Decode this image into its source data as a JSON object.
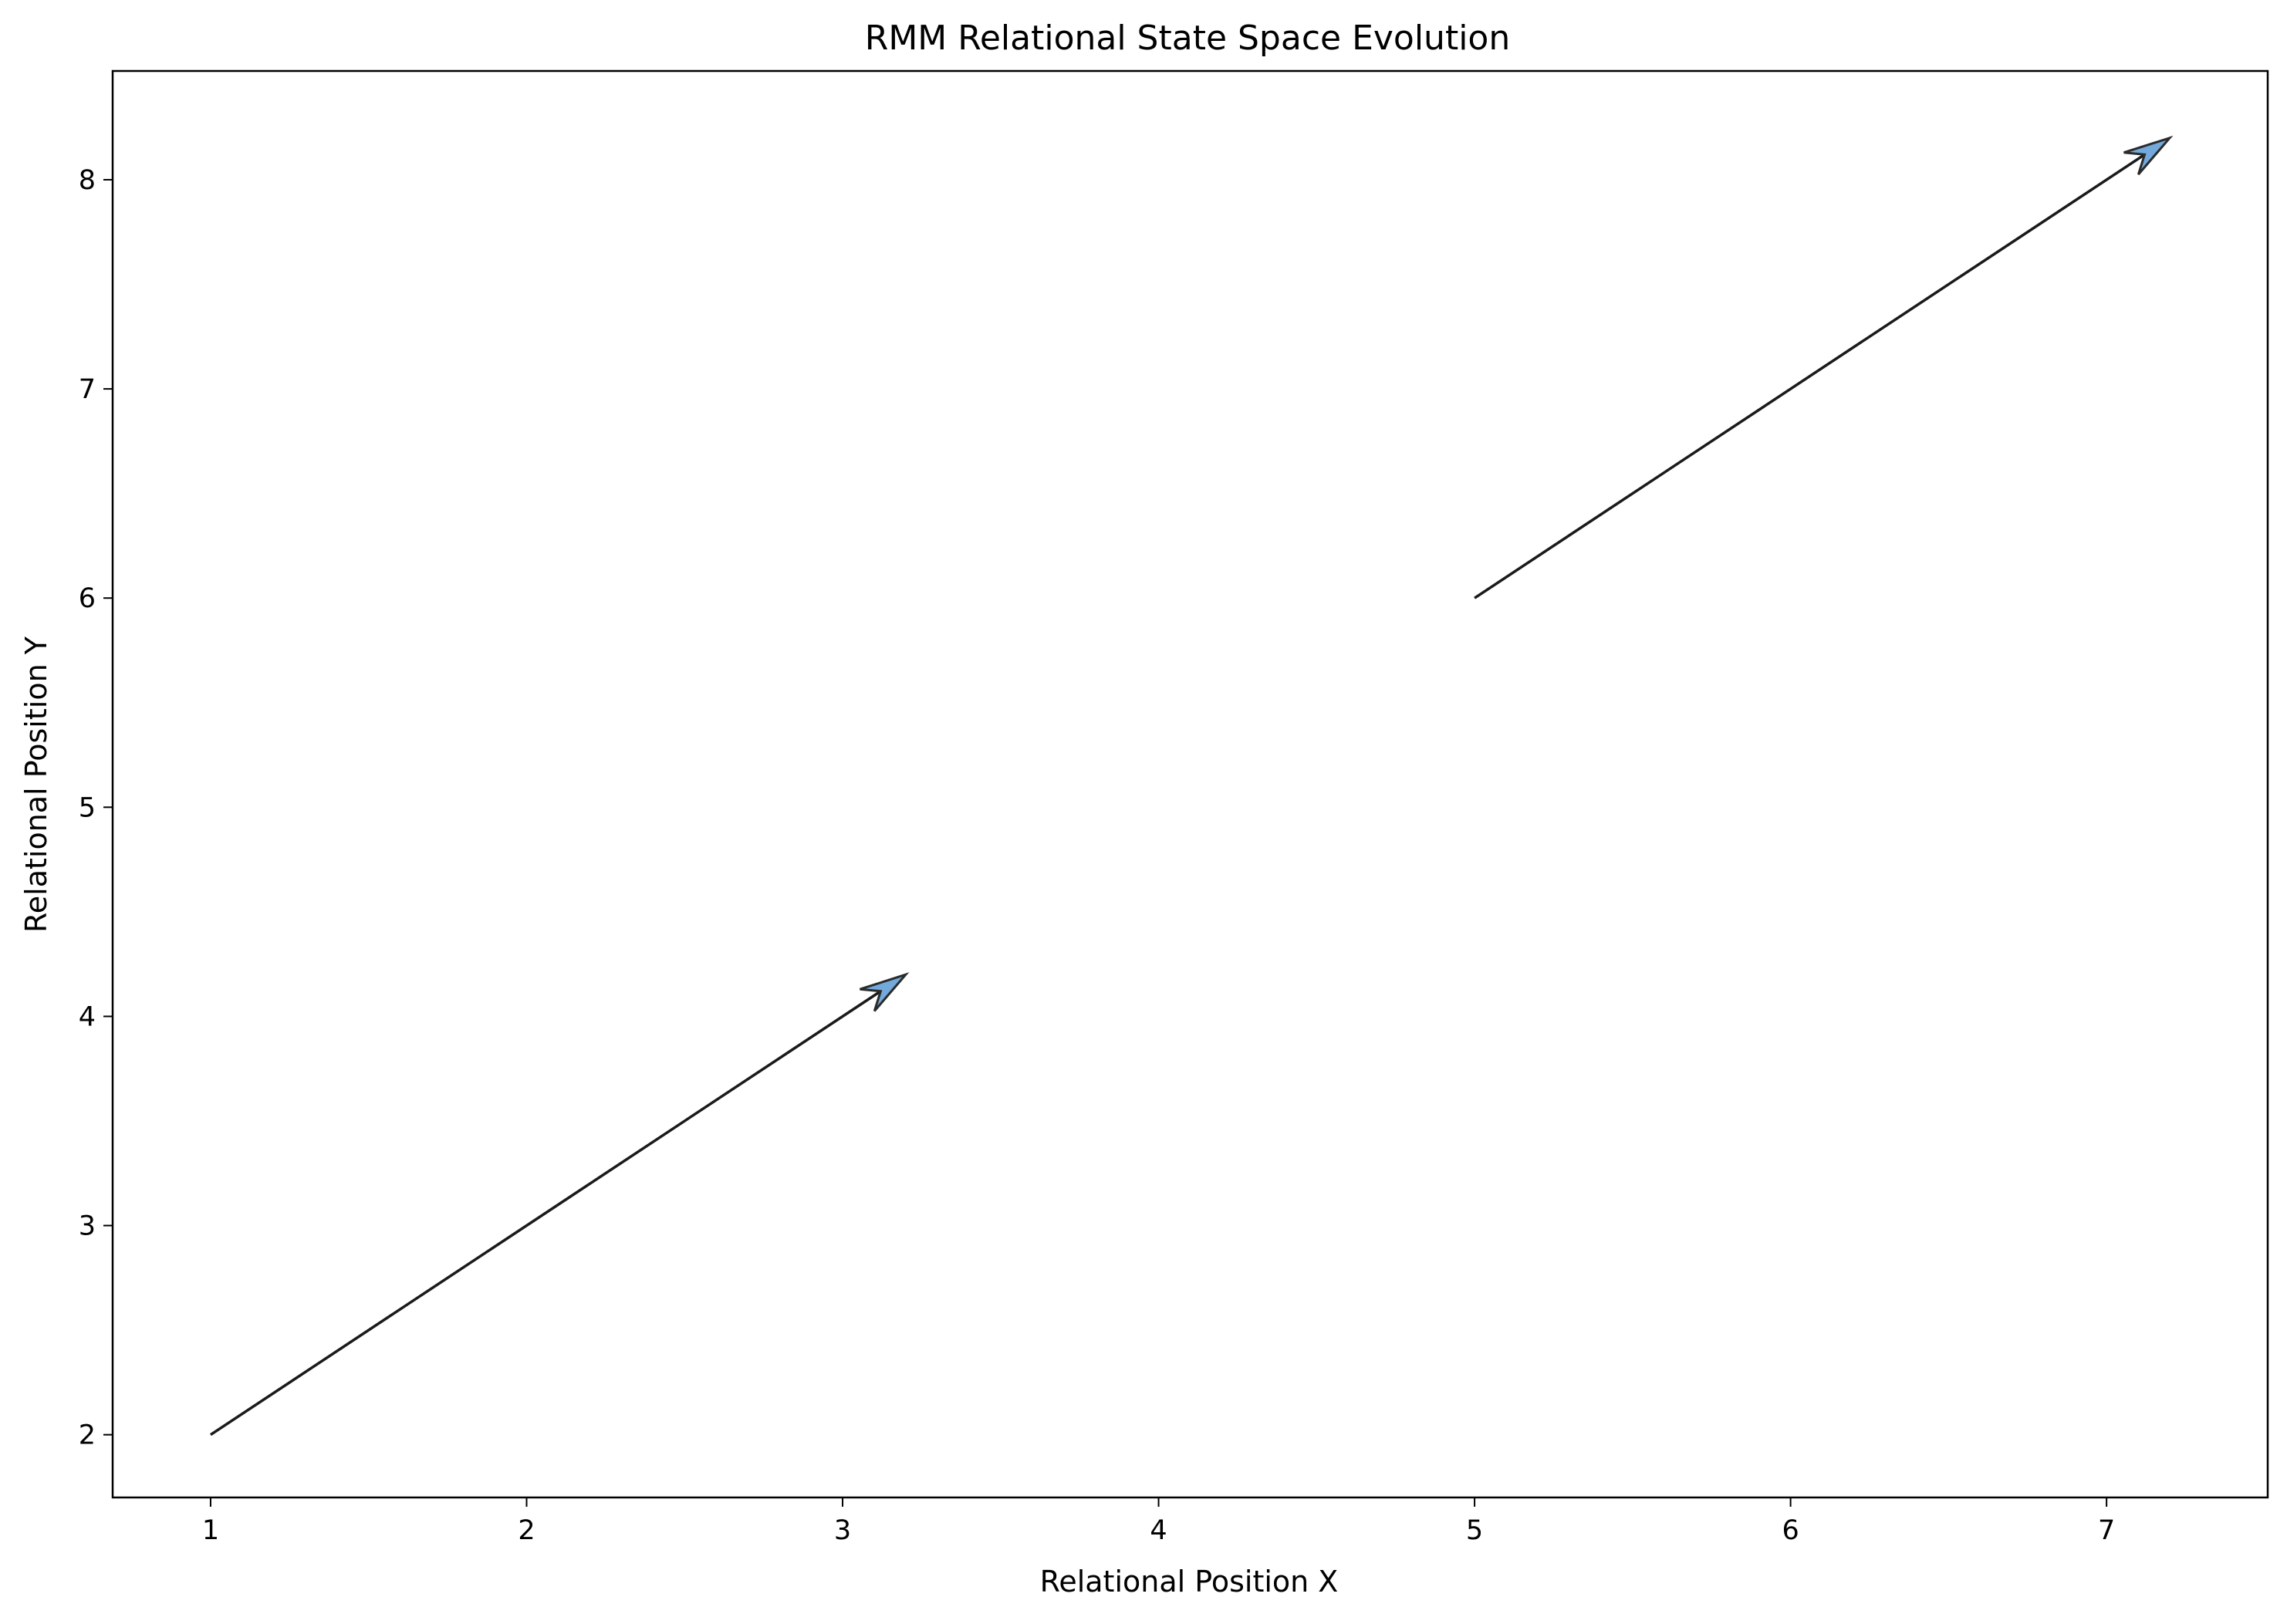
{
  "chart_data": {
    "type": "quiver",
    "title": "RMM Relational State Space Evolution",
    "xlabel": "Relational Position X",
    "ylabel": "Relational Position Y",
    "xlim": [
      0.69,
      7.51
    ],
    "ylim": [
      1.7,
      8.52
    ],
    "xticks": [
      1,
      2,
      3,
      4,
      5,
      6,
      7
    ],
    "yticks": [
      2,
      3,
      4,
      5,
      6,
      7,
      8
    ],
    "grid": false,
    "arrows": [
      {
        "x": 1,
        "y": 2,
        "dx": 2.2,
        "dy": 2.2
      },
      {
        "x": 5,
        "y": 6,
        "dx": 2.2,
        "dy": 2.2
      }
    ],
    "colors": {
      "arrow_line": "#1a1a1a",
      "arrow_head_fill": "#5a9bd5",
      "arrow_head_edge": "#2b2b2b",
      "axes": "#000000"
    }
  }
}
